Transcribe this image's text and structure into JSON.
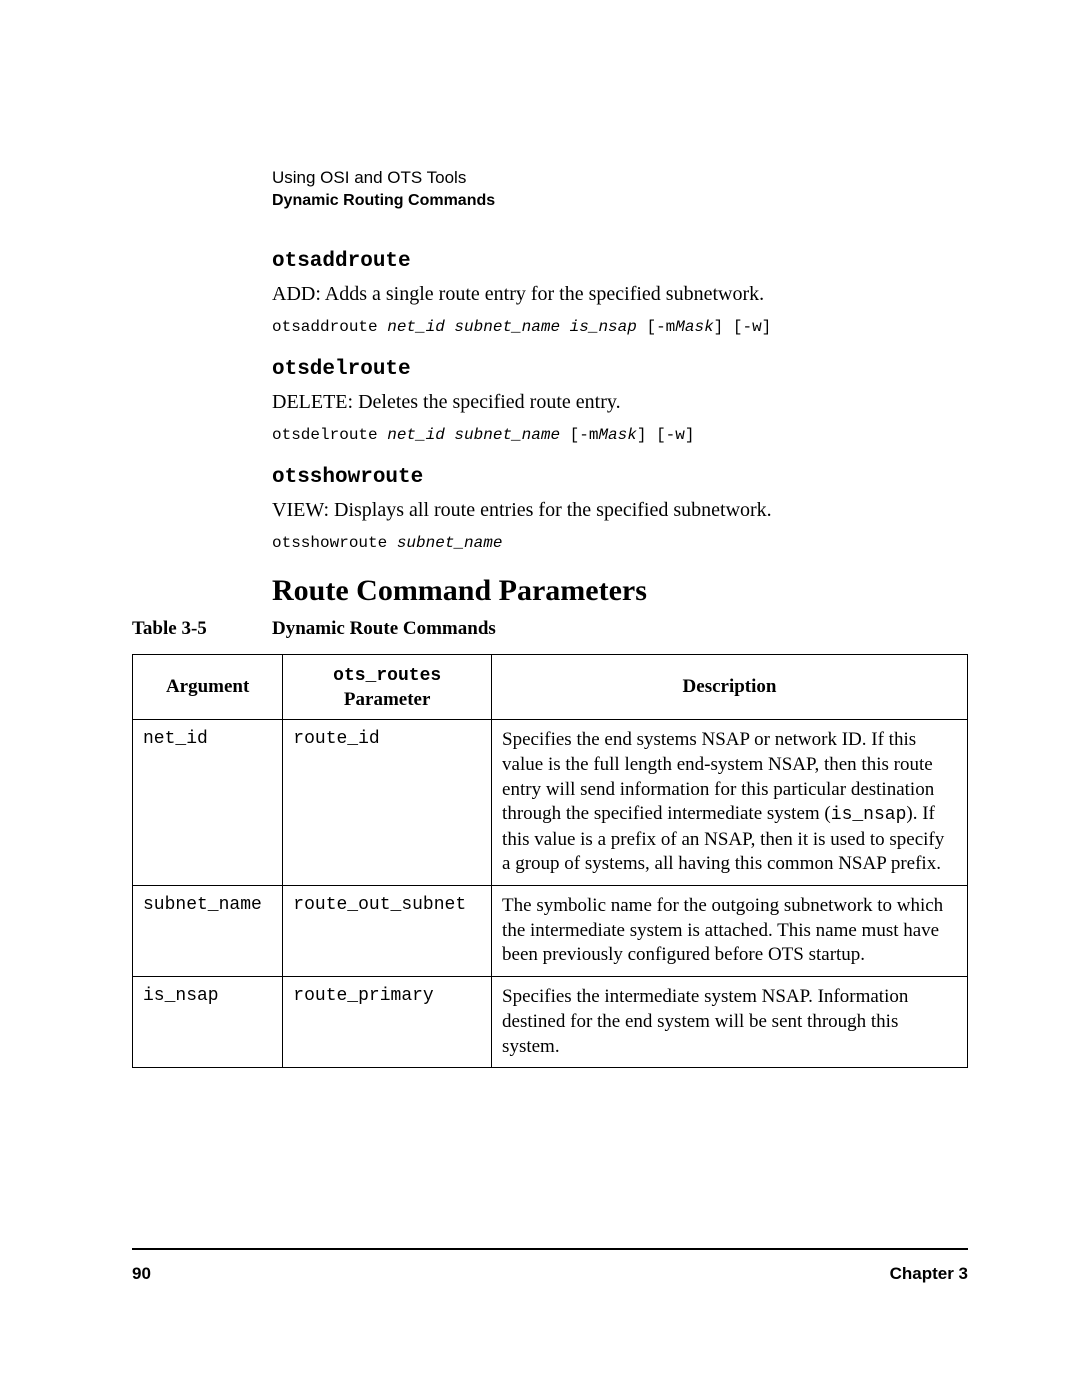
{
  "header": {
    "line1": "Using OSI and OTS Tools",
    "line2": "Dynamic Routing Commands"
  },
  "commands": [
    {
      "name": "otsaddroute",
      "desc": "ADD: Adds a single route entry for the specified subnetwork.",
      "syntax_cmd": "otsaddroute ",
      "syntax_args": "net_id subnet_name is_nsap",
      "syntax_flags_pre": " [-m",
      "syntax_mask": "Mask",
      "syntax_flags_post": "] [-w]"
    },
    {
      "name": "otsdelroute",
      "desc": "DELETE: Deletes the specified route entry.",
      "syntax_cmd": "otsdelroute ",
      "syntax_args": "net_id subnet_name",
      "syntax_flags_pre": " [-m",
      "syntax_mask": "Mask",
      "syntax_flags_post": "] [-w]"
    },
    {
      "name": "otsshowroute",
      "desc": "VIEW: Displays all route entries for the specified subnetwork.",
      "syntax_cmd": "otsshowroute ",
      "syntax_args": "subnet_name",
      "syntax_flags_pre": "",
      "syntax_mask": "",
      "syntax_flags_post": ""
    }
  ],
  "section_heading": "Route Command Parameters",
  "table_caption_number": "Table 3-5",
  "table_caption_title": "Dynamic Route Commands",
  "table": {
    "head": {
      "col1": "Argument",
      "col2_line1": "ots_routes",
      "col2_line2": "Parameter",
      "col3": "Description"
    },
    "rows": [
      {
        "arg": "net_id",
        "param": "route_id",
        "desc_pre": "Specifies the end systems NSAP or network ID. If this value is the full length end-system NSAP, then this route entry will send information for this particular destination through the specified intermediate system (",
        "desc_mono": "is_nsap",
        "desc_post": "). If this value is a prefix of an NSAP, then it is used to specify a group of systems, all having this common NSAP prefix."
      },
      {
        "arg": "subnet_name",
        "param": "route_out_subnet",
        "desc_pre": "The symbolic name for the outgoing subnetwork to which the intermediate system is attached. This name must have been previously configured before OTS startup.",
        "desc_mono": "",
        "desc_post": ""
      },
      {
        "arg": "is_nsap",
        "param": "route_primary",
        "desc_pre": "Specifies the intermediate system NSAP. Information destined for the end system will be sent through this system.",
        "desc_mono": "",
        "desc_post": ""
      }
    ],
    "col_widths": {
      "col1": "18%",
      "col2": "25%",
      "col3": "57%"
    }
  },
  "footer": {
    "page": "90",
    "chapter": "Chapter 3"
  }
}
